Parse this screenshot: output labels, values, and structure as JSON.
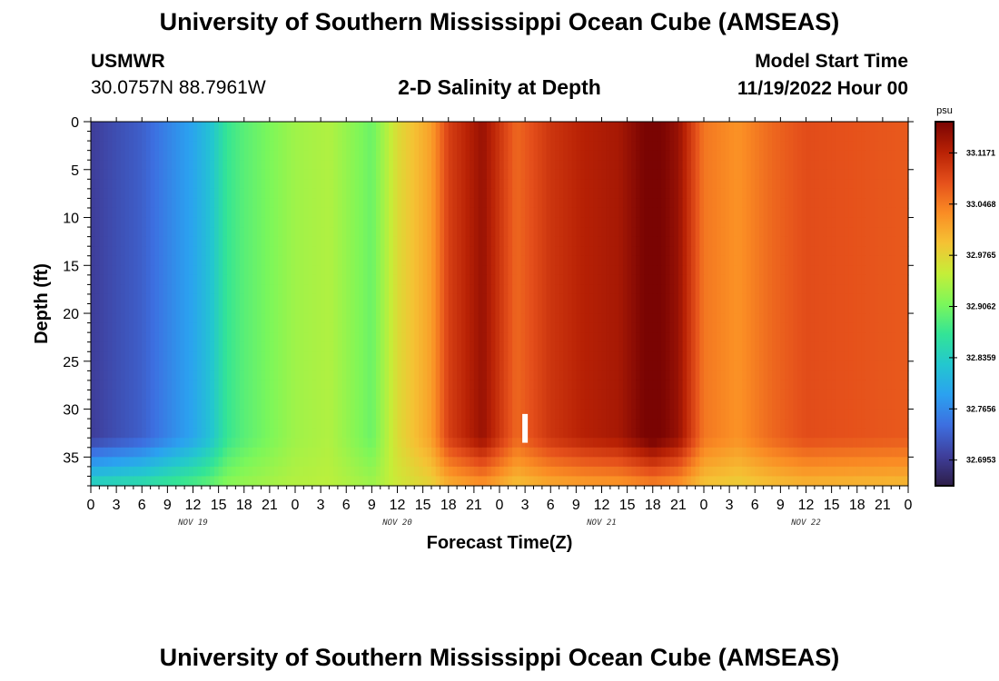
{
  "header": {
    "title": "University of Southern Mississippi Ocean Cube (AMSEAS)",
    "station_name": "USMWR",
    "station_coords": "30.0757N  88.7961W",
    "subtitle": "2-D Salinity at Depth",
    "model_start_label": "Model Start Time",
    "model_start_value": "11/19/2022 Hour 00"
  },
  "footer": {
    "title": "University of Southern Mississippi Ocean Cube (AMSEAS)"
  },
  "chart_data": {
    "type": "heatmap",
    "xlabel": "Forecast Time(Z)",
    "ylabel": "Depth (ft)",
    "x_tick_labels": [
      "0",
      "3",
      "6",
      "9",
      "12",
      "15",
      "18",
      "21",
      "0",
      "3",
      "6",
      "9",
      "12",
      "15",
      "18",
      "21",
      "0",
      "3",
      "6",
      "9",
      "12",
      "15",
      "18",
      "21",
      "0",
      "3",
      "6",
      "9",
      "12",
      "15",
      "18",
      "21",
      "0"
    ],
    "x_range_hours": [
      0,
      96
    ],
    "day_labels": [
      {
        "label": "NOV 19",
        "hour": 12
      },
      {
        "label": "NOV 20",
        "hour": 36
      },
      {
        "label": "NOV 21",
        "hour": 60
      },
      {
        "label": "NOV 22",
        "hour": 84
      }
    ],
    "y_ticks": [
      0,
      5,
      10,
      15,
      20,
      25,
      30,
      35
    ],
    "y_range_ft": [
      0,
      38
    ],
    "y_inverted": true,
    "colorbar": {
      "unit": "psu",
      "labels": [
        "33.1171",
        "33.0468",
        "32.9765",
        "32.9062",
        "32.8359",
        "32.7656",
        "32.6953"
      ],
      "min": 32.66,
      "max": 33.16,
      "colors": [
        "#2d1e48",
        "#3f3f9c",
        "#3d6fe0",
        "#2ba1f0",
        "#23c7cf",
        "#33e496",
        "#7cf75a",
        "#c5ee38",
        "#f5c234",
        "#fa8c24",
        "#e5501b",
        "#b82105",
        "#7a0403"
      ]
    },
    "marker_hour": 51,
    "salinity_at_hour_surface": [
      [
        0,
        32.7
      ],
      [
        6,
        32.73
      ],
      [
        12,
        32.79
      ],
      [
        14,
        32.82
      ],
      [
        16,
        32.87
      ],
      [
        18,
        32.89
      ],
      [
        24,
        32.93
      ],
      [
        28,
        32.94
      ],
      [
        33,
        32.9
      ],
      [
        36,
        32.97
      ],
      [
        40,
        33.02
      ],
      [
        42,
        33.09
      ],
      [
        46,
        33.14
      ],
      [
        50,
        33.06
      ],
      [
        54,
        33.1
      ],
      [
        58,
        33.12
      ],
      [
        62,
        33.13
      ],
      [
        66,
        33.17
      ],
      [
        69,
        33.14
      ],
      [
        72,
        33.05
      ],
      [
        76,
        33.03
      ],
      [
        80,
        33.06
      ],
      [
        84,
        33.08
      ],
      [
        96,
        33.07
      ]
    ]
  }
}
